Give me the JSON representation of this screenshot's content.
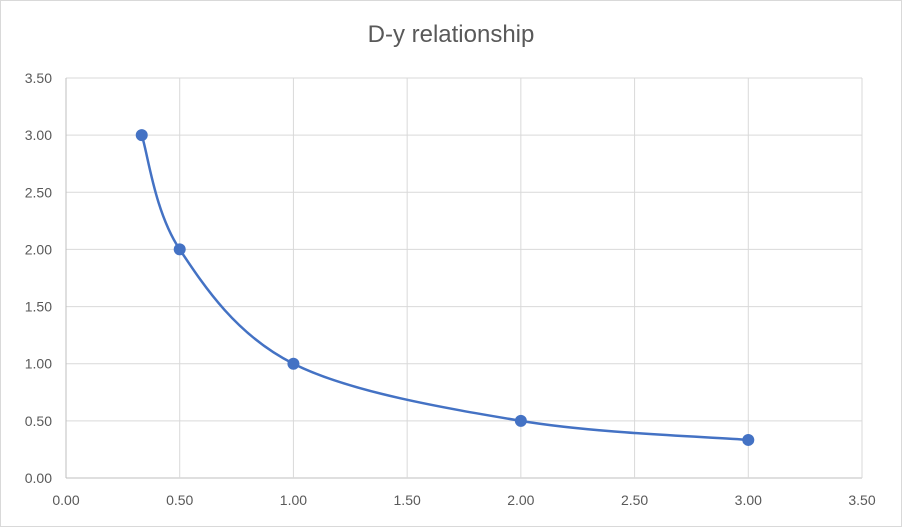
{
  "chart_data": {
    "type": "scatter",
    "title": "D-y relationship",
    "xlabel": "",
    "ylabel": "",
    "xlim": [
      0,
      3.5
    ],
    "ylim": [
      0,
      3.5
    ],
    "x_ticks": [
      "0.00",
      "0.50",
      "1.00",
      "1.50",
      "2.00",
      "2.50",
      "3.00",
      "3.50"
    ],
    "y_ticks": [
      "0.00",
      "0.50",
      "1.00",
      "1.50",
      "2.00",
      "2.50",
      "3.00",
      "3.50"
    ],
    "grid": true,
    "smooth": true,
    "series": [
      {
        "x": [
          0.333,
          0.5,
          1.0,
          2.0,
          3.0
        ],
        "y": [
          3.0,
          2.0,
          1.0,
          0.5,
          0.333
        ],
        "color": "#4472c4"
      }
    ]
  }
}
